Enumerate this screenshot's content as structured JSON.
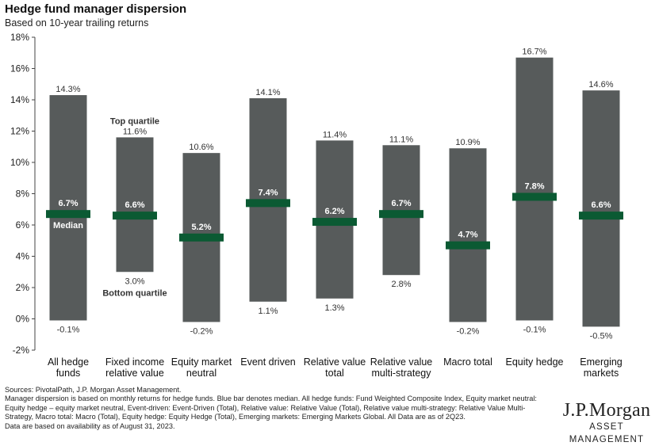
{
  "header": {
    "title": "Hedge fund manager dispersion",
    "subtitle": "Based on 10-year trailing returns"
  },
  "chart_data": {
    "type": "bar",
    "title": "Hedge fund manager dispersion",
    "subtitle": "Based on 10-year trailing returns",
    "ylim": [
      -2,
      18
    ],
    "yticks": [
      -2,
      0,
      2,
      4,
      6,
      8,
      10,
      12,
      14,
      16,
      18
    ],
    "ytick_labels": [
      "-2%",
      "0%",
      "2%",
      "4%",
      "6%",
      "8%",
      "10%",
      "12%",
      "14%",
      "16%",
      "18%"
    ],
    "grid": false,
    "categories": [
      [
        "All hedge",
        "funds"
      ],
      [
        "Fixed income",
        "relative value"
      ],
      [
        "Equity market",
        "neutral"
      ],
      [
        "Event driven"
      ],
      [
        "Relative value",
        "total"
      ],
      [
        "Relative value",
        "multi-strategy"
      ],
      [
        "Macro total"
      ],
      [
        "Equity hedge"
      ],
      [
        "Emerging",
        "markets"
      ]
    ],
    "top_quartile": [
      14.3,
      11.6,
      10.6,
      14.1,
      11.4,
      11.1,
      10.9,
      16.7,
      14.6
    ],
    "bottom_quartile": [
      -0.1,
      3.0,
      -0.2,
      1.1,
      1.3,
      2.8,
      -0.2,
      -0.1,
      -0.5
    ],
    "median": [
      6.7,
      6.6,
      5.2,
      7.4,
      6.2,
      6.7,
      4.7,
      7.8,
      6.6
    ],
    "top_labels": [
      "14.3%",
      "11.6%",
      "10.6%",
      "14.1%",
      "11.4%",
      "11.1%",
      "10.9%",
      "16.7%",
      "14.6%"
    ],
    "bottom_labels": [
      "-0.1%",
      "3.0%",
      "-0.2%",
      "1.1%",
      "1.3%",
      "2.8%",
      "-0.2%",
      "-0.1%",
      "-0.5%"
    ],
    "median_labels": [
      "6.7%",
      "6.6%",
      "5.2%",
      "7.4%",
      "6.2%",
      "6.7%",
      "4.7%",
      "7.8%",
      "6.6%"
    ],
    "annotations": {
      "top_quartile": "Top quartile",
      "median": "Median",
      "bottom_quartile": "Bottom quartile"
    },
    "colors": {
      "bar": "#575b5b",
      "median": "#0b5a33",
      "text": "#333333"
    }
  },
  "footnote": {
    "lines": [
      "Sources: PivotalPath, J.P. Morgan Asset Management.",
      "Manager dispersion is based on monthly returns for hedge funds. Blue bar denotes median. All hedge funds: Fund Weighted Composite Index, Equity market neutral: Equity hedge – equity market neutral, Event-driven: Event-Driven (Total), Relative value: Relative Value (Total), Relative value multi-strategy: Relative Value Multi-Strategy, Macro total: Macro (Total), Equity hedge: Equity Hedge (Total), Emerging markets: Emerging Markets Global. All Data are as of 2Q23.",
      "Data are based on availability as of August 31, 2023."
    ]
  },
  "logo": {
    "main": "J.P.Morgan",
    "sub": "ASSET MANAGEMENT"
  }
}
